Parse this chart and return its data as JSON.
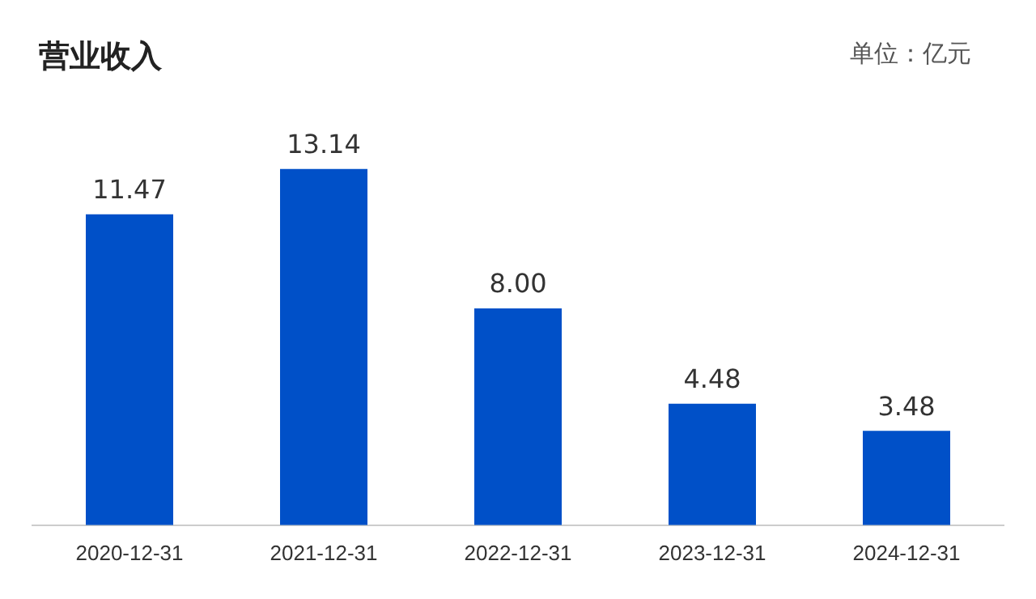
{
  "chart_data": {
    "type": "bar",
    "title": "营业收入",
    "annotations": [
      "单位：亿元"
    ],
    "categories": [
      "2020-12-31",
      "2021-12-31",
      "2022-12-31",
      "2023-12-31",
      "2024-12-31"
    ],
    "values": [
      11.47,
      13.14,
      8.0,
      4.48,
      3.48
    ],
    "value_labels": [
      "11.47",
      "13.14",
      "8.00",
      "4.48",
      "3.48"
    ],
    "color": "#0050c8",
    "grid": false,
    "legend": false
  }
}
